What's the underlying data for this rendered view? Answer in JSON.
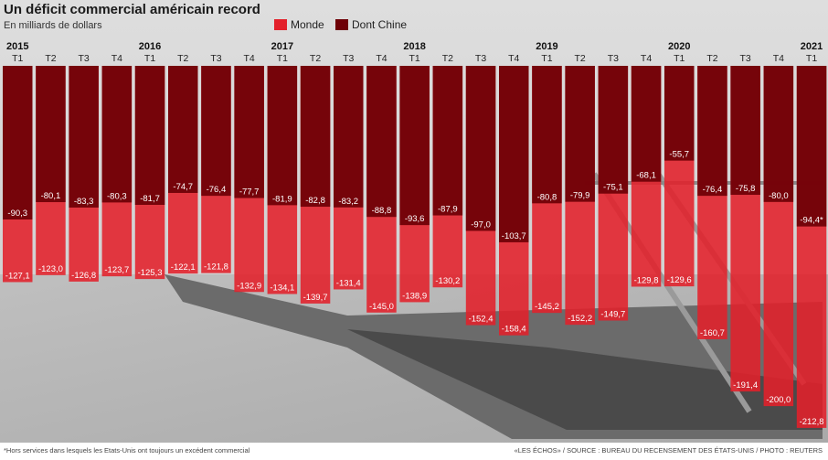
{
  "title": "Un déficit commercial américain record",
  "subtitle": "En milliards de dollars",
  "legend": {
    "world_label": "Monde",
    "world_color": "#e3202a",
    "china_label": "Dont Chine",
    "china_color": "#6e0006"
  },
  "footnote": "*Hors services dans lesquels les Etats-Unis ont toujours un excédent commercial",
  "source": "«LES ÉCHOS» / SOURCE : BUREAU DU RECENSEMENT DES ÉTATS-UNIS / PHOTO : REUTERS",
  "chart_data": {
    "type": "bar",
    "title": "Un déficit commercial américain record",
    "subtitle": "En milliards de dollars",
    "ylim": [
      -215,
      0
    ],
    "years": [
      {
        "label": "2015",
        "index": 0
      },
      {
        "label": "2016",
        "index": 4
      },
      {
        "label": "2017",
        "index": 8
      },
      {
        "label": "2018",
        "index": 12
      },
      {
        "label": "2019",
        "index": 16
      },
      {
        "label": "2020",
        "index": 20
      },
      {
        "label": "2021",
        "index": 24
      }
    ],
    "categories": [
      "T1",
      "T2",
      "T3",
      "T4",
      "T1",
      "T2",
      "T3",
      "T4",
      "T1",
      "T2",
      "T3",
      "T4",
      "T1",
      "T2",
      "T3",
      "T4",
      "T1",
      "T2",
      "T3",
      "T4",
      "T1",
      "T2",
      "T3",
      "T4",
      "T1"
    ],
    "series": [
      {
        "name": "Monde",
        "color": "#e3202a",
        "values": [
          -127.1,
          -123.0,
          -126.8,
          -123.7,
          -125.3,
          -122.1,
          -121.8,
          -132.9,
          -134.1,
          -139.7,
          -131.4,
          -145.0,
          -138.9,
          -130.2,
          -152.4,
          -158.4,
          -145.2,
          -152.2,
          -149.7,
          -129.8,
          -129.6,
          -160.7,
          -191.4,
          -200.0,
          -212.8
        ],
        "labels": [
          "-127,1",
          "-123,0",
          "-126,8",
          "-123,7",
          "-125,3",
          "-122,1",
          "-121,8",
          "-132,9",
          "-134,1",
          "-139,7",
          "-131,4",
          "-145,0",
          "-138,9",
          "-130,2",
          "-152,4",
          "-158,4",
          "-145,2",
          "-152,2",
          "-149,7",
          "-129,8",
          "-129,6",
          "-160,7",
          "-191,4",
          "-200,0",
          "-212,8"
        ]
      },
      {
        "name": "Dont Chine",
        "color": "#6e0006",
        "values": [
          -90.3,
          -80.1,
          -83.3,
          -80.3,
          -81.7,
          -74.7,
          -76.4,
          -77.7,
          -81.9,
          -82.8,
          -83.2,
          -88.8,
          -93.6,
          -87.9,
          -97.0,
          -103.7,
          -80.8,
          -79.9,
          -75.1,
          -68.1,
          -55.7,
          -76.4,
          -75.8,
          -80.0,
          -94.4
        ],
        "labels": [
          "-90,3",
          "-80,1",
          "-83,3",
          "-80,3",
          "-81,7",
          "-74,7",
          "-76,4",
          "-77,7",
          "-81,9",
          "-82,8",
          "-83,2",
          "-88,8",
          "-93,6",
          "-87,9",
          "-97,0",
          "-103,7",
          "-80,8",
          "-79,9",
          "-75,1",
          "-68,1",
          "-55,7",
          "-76,4",
          "-75,8",
          "-80,0",
          "-94,4*"
        ]
      }
    ]
  }
}
